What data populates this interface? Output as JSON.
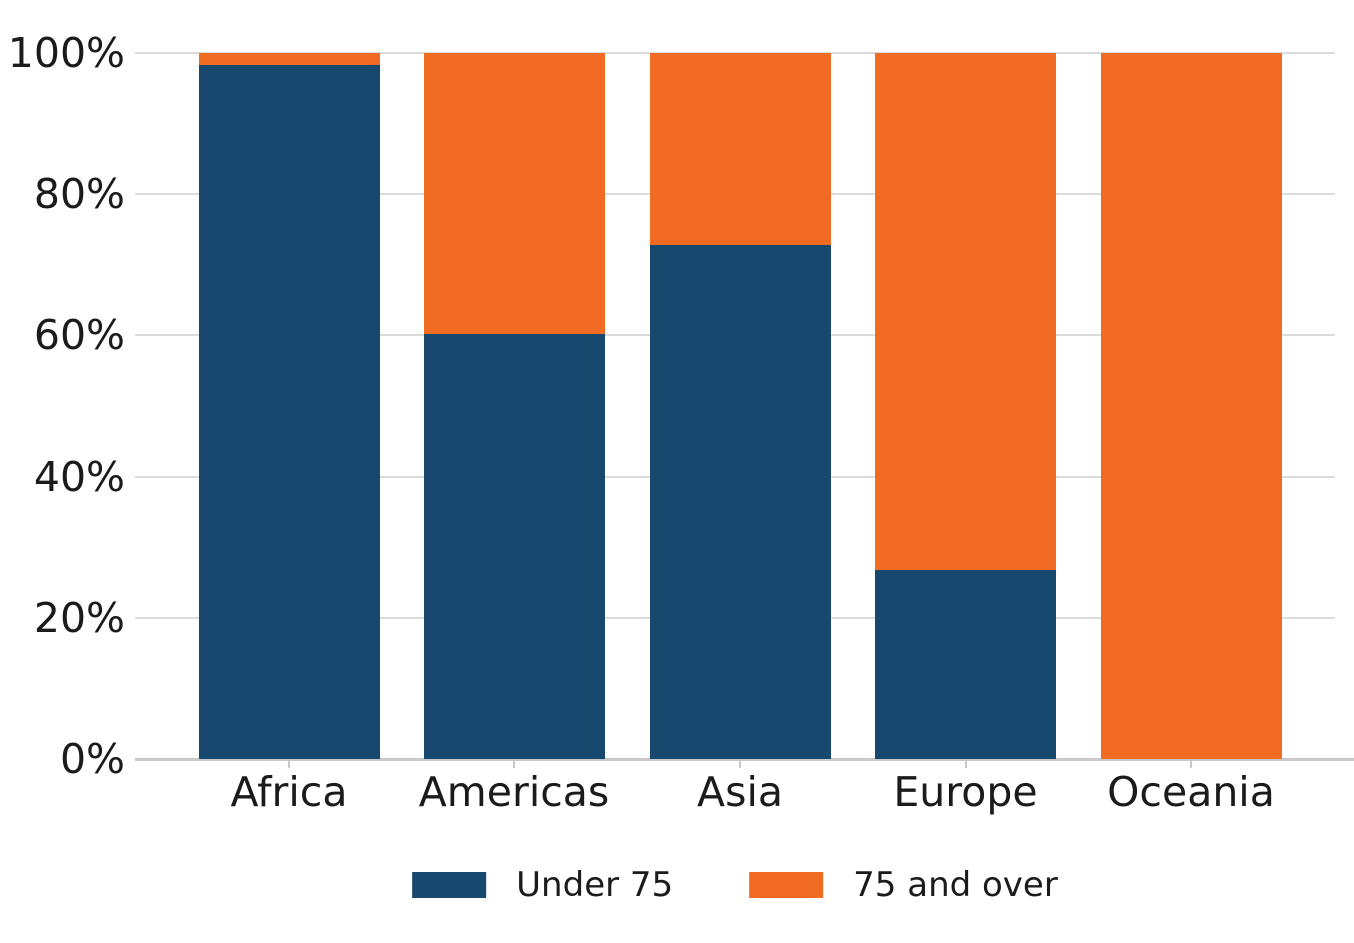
{
  "chart_data": {
    "type": "bar",
    "stacked": true,
    "percent_stacked": true,
    "title": "",
    "xlabel": "",
    "ylabel": "",
    "categories": [
      "Africa",
      "Americas",
      "Asia",
      "Europe",
      "Oceania"
    ],
    "series": [
      {
        "name": "Under 75",
        "color": "#17486E",
        "values": [
          98.3,
          60.2,
          72.8,
          26.8,
          0
        ]
      },
      {
        "name": "75 and over",
        "color": "#F26B22",
        "values": [
          1.7,
          39.8,
          27.2,
          73.2,
          100
        ]
      }
    ],
    "ylim": [
      0,
      100
    ],
    "ytick_values": [
      0,
      20,
      40,
      60,
      80,
      100
    ],
    "ytick_labels": [
      "0%",
      "20%",
      "40%",
      "60%",
      "80%",
      "100%"
    ],
    "grid": "horizontal",
    "legend_position": "bottom-center"
  },
  "colors": {
    "background": "#FFFFFF",
    "gridline": "#DBDBDB",
    "axis_line": "#C9C9C9",
    "tick_mark": "#C9C9C9",
    "text": "#1B1B1B"
  }
}
